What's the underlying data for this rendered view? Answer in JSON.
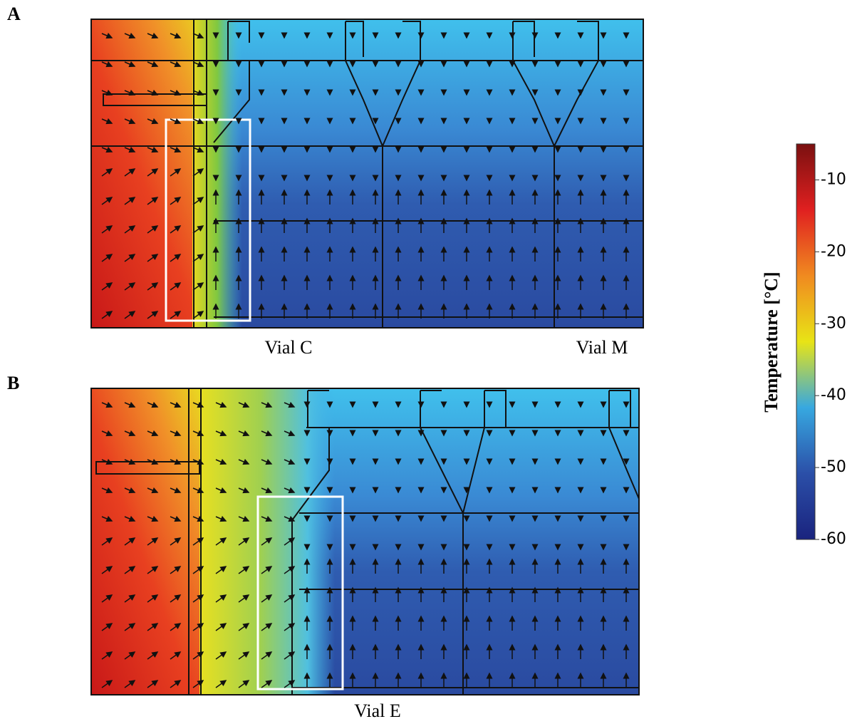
{
  "panels": [
    {
      "label": "A",
      "vial_labels": [
        "Vial C",
        "Vial M"
      ]
    },
    {
      "label": "B",
      "vial_labels": [
        "Vial E"
      ]
    }
  ],
  "colorbar": {
    "label": "Temperature [°C]",
    "lim": [
      -60,
      -5
    ],
    "ticks": [
      -10,
      -20,
      -30,
      -40,
      -50,
      -60
    ],
    "colors": [
      "#1a237e",
      "#2b4fa8",
      "#37a8e0",
      "#e8e416",
      "#f08a20",
      "#e02020",
      "#7a1010"
    ]
  }
}
